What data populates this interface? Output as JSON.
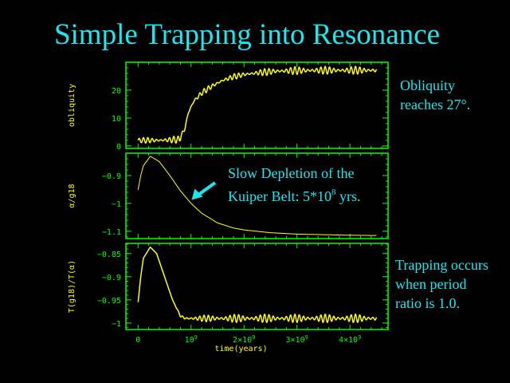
{
  "slide": {
    "title": "Simple Trapping into Resonance",
    "notes": [
      {
        "lines": [
          "Obliquity",
          "reaches 27°."
        ]
      },
      {
        "lines": [
          "Trapping occurs",
          "when period",
          "ratio is 1.0."
        ]
      }
    ],
    "colors": {
      "text": "#18e8f0",
      "frame": "#00ff00",
      "curve": "#ffff00",
      "background": "#000000",
      "arrow": "#18e8f0"
    }
  },
  "chart_data": [
    {
      "type": "line",
      "ylabel": "obliquity",
      "xlabel": "",
      "xlim": [
        -230000000.0,
        4720000000.0
      ],
      "ylim": [
        -0.9,
        30
      ],
      "yticks": [
        {
          "v": 0,
          "label": "0"
        },
        {
          "v": 10,
          "label": "10"
        },
        {
          "v": 20,
          "label": "20"
        }
      ],
      "x": [
        0,
        400000000.0,
        780000000.0,
        820000000.0,
        880000000.0,
        950000000.0,
        1050000000.0,
        1200000000.0,
        1400000000.0,
        1600000000.0,
        1800000000.0,
        2000000000.0,
        2300000000.0,
        2600000000.0,
        3000000000.0,
        3500000000.0,
        4000000000.0,
        4500000000.0
      ],
      "y": [
        2,
        2,
        2.3,
        4,
        6,
        12,
        16,
        19,
        21.5,
        23.5,
        24.8,
        25.6,
        26.3,
        26.8,
        27,
        27.1,
        27.1,
        27.1
      ],
      "oscillation_amplitude": [
        1,
        1,
        1.3,
        1,
        1,
        1,
        1,
        1,
        1,
        1,
        1,
        1,
        1.2,
        1.3,
        1.4,
        1.4,
        1.4,
        1.4
      ]
    },
    {
      "type": "line",
      "ylabel": "α/g18",
      "xlabel": "",
      "xlim": [
        -230000000.0,
        4720000000.0
      ],
      "ylim": [
        -1.126,
        -0.82
      ],
      "yticks": [
        {
          "v": -0.9,
          "label": "−0.9"
        },
        {
          "v": -1,
          "label": "−1"
        },
        {
          "v": -1.1,
          "label": "−1.1"
        }
      ],
      "x": [
        0,
        50000000.0,
        100000000.0,
        230000000.0,
        400000000.0,
        600000000.0,
        800000000.0,
        1000000000.0,
        1200000000.0,
        1500000000.0,
        1800000000.0,
        2000000000.0,
        2500000000.0,
        3000000000.0,
        3500000000.0,
        4000000000.0,
        4500000000.0
      ],
      "y": [
        -0.951,
        -0.9,
        -0.865,
        -0.831,
        -0.85,
        -0.9,
        -0.955,
        -1.0,
        -1.035,
        -1.07,
        -1.088,
        -1.095,
        -1.105,
        -1.11,
        -1.112,
        -1.114,
        -1.115
      ],
      "annotation": {
        "text": "Slow Depletion of  the",
        "text2": "Kuiper Belt: 5*10",
        "superscript": "8",
        "text3": " yrs.",
        "arrow_target": [
          950000000.0,
          -0.99
        ]
      }
    },
    {
      "type": "line",
      "ylabel": "T(g18)/T(α)",
      "xlabel": "time(years)",
      "xlim": [
        -230000000.0,
        4720000000.0
      ],
      "ylim": [
        -1.014,
        -0.828
      ],
      "xticks": [
        {
          "v": 0,
          "label": "0",
          "sup": ""
        },
        {
          "v": 1000000000.0,
          "label": "10",
          "sup": "9"
        },
        {
          "v": 2000000000.0,
          "label": "2×10",
          "sup": "9"
        },
        {
          "v": 3000000000.0,
          "label": "3×10",
          "sup": "9"
        },
        {
          "v": 4000000000.0,
          "label": "4×10",
          "sup": "9"
        }
      ],
      "yticks": [
        {
          "v": -0.85,
          "label": "−0.85"
        },
        {
          "v": -0.9,
          "label": "−0.9"
        },
        {
          "v": -0.95,
          "label": "−0.95"
        },
        {
          "v": -1,
          "label": "−1"
        }
      ],
      "x": [
        0,
        50000000.0,
        100000000.0,
        230000000.0,
        350000000.0,
        500000000.0,
        650000000.0,
        800000000.0,
        900000000.0,
        1000000000.0,
        1500000000.0,
        2000000000.0,
        3000000000.0,
        4000000000.0,
        4500000000.0
      ],
      "y": [
        -0.955,
        -0.9,
        -0.86,
        -0.836,
        -0.85,
        -0.9,
        -0.95,
        -0.985,
        -0.99,
        -0.99,
        -0.99,
        -0.99,
        -0.99,
        -0.99,
        -0.99
      ],
      "oscillation_amplitude": [
        0,
        0,
        0,
        0,
        0,
        0,
        0,
        0.002,
        0.005,
        0.006,
        0.008,
        0.009,
        0.009,
        0.009,
        0.009
      ]
    }
  ]
}
